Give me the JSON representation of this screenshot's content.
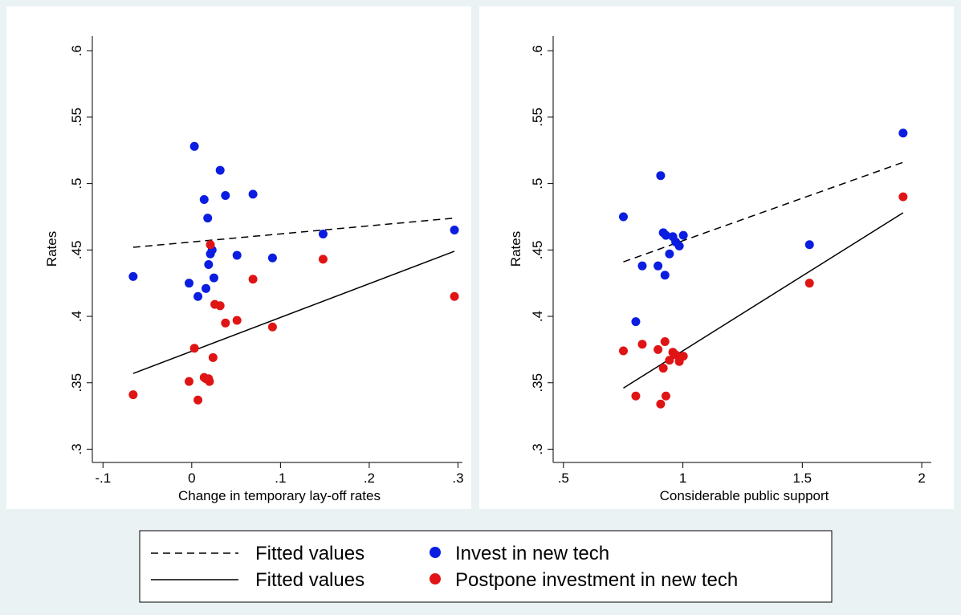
{
  "colors": {
    "invest": "#0b1de0",
    "postpone": "#e01414",
    "line": "#000000",
    "background": "#eaf2f3",
    "plot": "#ffffff"
  },
  "legend": {
    "items": [
      {
        "label": "Fitted values",
        "style": "dashed-line"
      },
      {
        "label": "Invest in new tech",
        "style": "blue-dot"
      },
      {
        "label": "Fitted values",
        "style": "solid-line"
      },
      {
        "label": "Postpone investment in new tech",
        "style": "red-dot"
      }
    ]
  },
  "chart_data": [
    {
      "type": "scatter",
      "xlabel": "Change in temporary lay-off rates",
      "ylabel": "Rates",
      "xticks": [
        "-.1",
        "0",
        ".1",
        ".2",
        ".3"
      ],
      "xtick_values": [
        -0.1,
        0,
        0.1,
        0.2,
        0.3
      ],
      "yticks": [
        ".3",
        ".35",
        ".4",
        ".45",
        ".5",
        ".55",
        ".6"
      ],
      "ytick_values": [
        0.3,
        0.35,
        0.4,
        0.45,
        0.5,
        0.55,
        0.6
      ],
      "xlim": [
        -0.112,
        0.305
      ],
      "ylim": [
        0.29,
        0.611
      ],
      "series": [
        {
          "name": "Invest in new tech",
          "marker": "dot",
          "color": "blue",
          "points": [
            [
              -0.066,
              0.43
            ],
            [
              -0.003,
              0.425
            ],
            [
              0.003,
              0.528
            ],
            [
              0.007,
              0.415
            ],
            [
              0.014,
              0.488
            ],
            [
              0.016,
              0.421
            ],
            [
              0.018,
              0.474
            ],
            [
              0.019,
              0.439
            ],
            [
              0.021,
              0.447
            ],
            [
              0.023,
              0.45
            ],
            [
              0.025,
              0.429
            ],
            [
              0.032,
              0.51
            ],
            [
              0.038,
              0.491
            ],
            [
              0.051,
              0.446
            ],
            [
              0.069,
              0.492
            ],
            [
              0.091,
              0.444
            ],
            [
              0.148,
              0.462
            ],
            [
              0.296,
              0.465
            ]
          ]
        },
        {
          "name": "Postpone investment in new tech",
          "marker": "dot",
          "color": "red",
          "points": [
            [
              -0.066,
              0.341
            ],
            [
              -0.003,
              0.351
            ],
            [
              0.003,
              0.376
            ],
            [
              0.007,
              0.337
            ],
            [
              0.014,
              0.354
            ],
            [
              0.016,
              0.353
            ],
            [
              0.019,
              0.353
            ],
            [
              0.02,
              0.351
            ],
            [
              0.021,
              0.454
            ],
            [
              0.024,
              0.369
            ],
            [
              0.026,
              0.409
            ],
            [
              0.032,
              0.408
            ],
            [
              0.038,
              0.395
            ],
            [
              0.051,
              0.397
            ],
            [
              0.069,
              0.428
            ],
            [
              0.091,
              0.392
            ],
            [
              0.148,
              0.443
            ],
            [
              0.296,
              0.415
            ]
          ]
        },
        {
          "name": "Fitted values",
          "style": "dashed",
          "points": [
            [
              -0.066,
              0.452
            ],
            [
              0.296,
              0.474
            ]
          ]
        },
        {
          "name": "Fitted values",
          "style": "solid",
          "points": [
            [
              -0.066,
              0.357
            ],
            [
              0.296,
              0.449
            ]
          ]
        }
      ]
    },
    {
      "type": "scatter",
      "xlabel": "Considerable public support",
      "ylabel": "Rates",
      "xticks": [
        ".5",
        "1",
        "1.5",
        "2"
      ],
      "xtick_values": [
        0.5,
        1,
        1.5,
        2
      ],
      "yticks": [
        ".3",
        ".35",
        ".4",
        ".45",
        ".5",
        ".55",
        ".6"
      ],
      "ytick_values": [
        0.3,
        0.35,
        0.4,
        0.45,
        0.5,
        0.55,
        0.6
      ],
      "xlim": [
        0.457,
        2.04
      ],
      "ylim": [
        0.29,
        0.611
      ],
      "series": [
        {
          "name": "Invest in new tech",
          "marker": "dot",
          "color": "blue",
          "points": [
            [
              0.751,
              0.475
            ],
            [
              0.803,
              0.396
            ],
            [
              0.83,
              0.438
            ],
            [
              0.896,
              0.438
            ],
            [
              0.907,
              0.506
            ],
            [
              0.918,
              0.463
            ],
            [
              0.925,
              0.431
            ],
            [
              0.929,
              0.461
            ],
            [
              0.944,
              0.447
            ],
            [
              0.958,
              0.46
            ],
            [
              0.97,
              0.456
            ],
            [
              0.985,
              0.453
            ],
            [
              1.002,
              0.461
            ],
            [
              1.53,
              0.454
            ],
            [
              1.922,
              0.538
            ]
          ]
        },
        {
          "name": "Postpone investment in new tech",
          "marker": "dot",
          "color": "red",
          "points": [
            [
              0.751,
              0.374
            ],
            [
              0.803,
              0.34
            ],
            [
              0.83,
              0.379
            ],
            [
              0.896,
              0.375
            ],
            [
              0.907,
              0.334
            ],
            [
              0.918,
              0.361
            ],
            [
              0.925,
              0.381
            ],
            [
              0.929,
              0.34
            ],
            [
              0.944,
              0.367
            ],
            [
              0.958,
              0.373
            ],
            [
              0.97,
              0.371
            ],
            [
              0.985,
              0.366
            ],
            [
              1.002,
              0.37
            ],
            [
              1.53,
              0.425
            ],
            [
              1.922,
              0.49
            ]
          ]
        },
        {
          "name": "Fitted values",
          "style": "dashed",
          "points": [
            [
              0.751,
              0.441
            ],
            [
              1.922,
              0.516
            ]
          ]
        },
        {
          "name": "Fitted values",
          "style": "solid",
          "points": [
            [
              0.751,
              0.346
            ],
            [
              1.922,
              0.478
            ]
          ]
        }
      ]
    }
  ]
}
